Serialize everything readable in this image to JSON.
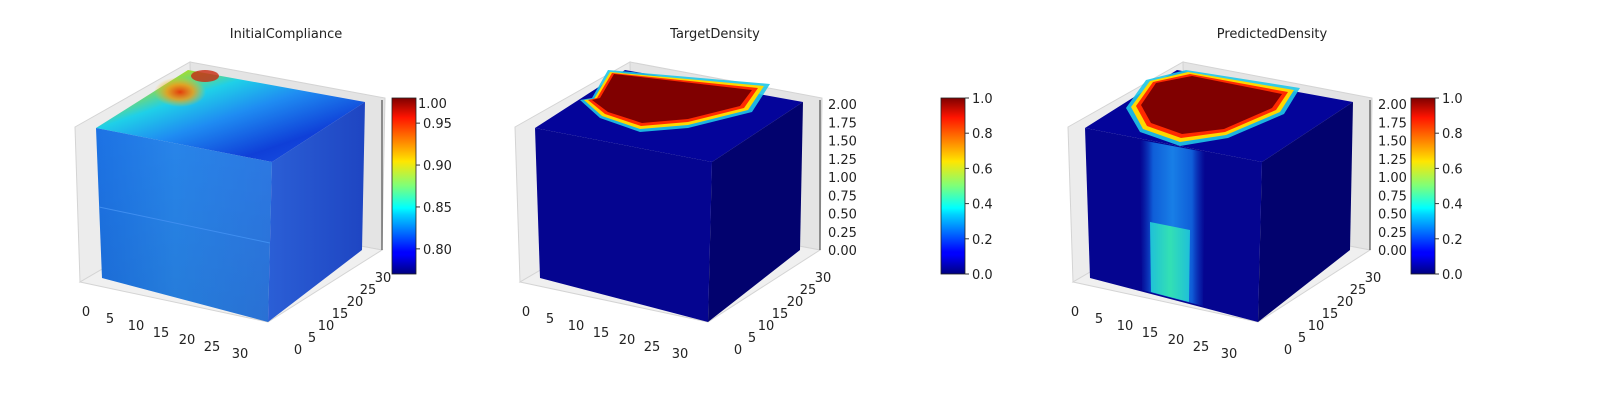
{
  "chart_data": [
    {
      "type": "3d-voxel",
      "title": "InitialCompliance",
      "x_ticks": [
        "0",
        "5",
        "10",
        "15",
        "20",
        "25",
        "30"
      ],
      "y_ticks": [
        "0",
        "5",
        "10",
        "15",
        "20",
        "25",
        "30"
      ],
      "z_ticks": [],
      "xlim": [
        0,
        32
      ],
      "ylim": [
        0,
        32
      ],
      "colormap": "jet",
      "colorbar": {
        "range": [
          0.77,
          0.98
        ],
        "ticks": [
          "0.80",
          "0.85",
          "0.90",
          "0.95"
        ],
        "top_partial_label": "1.00"
      }
    },
    {
      "type": "3d-voxel",
      "title": "TargetDensity",
      "x_ticks": [
        "0",
        "5",
        "10",
        "15",
        "20",
        "25",
        "30"
      ],
      "y_ticks": [
        "0",
        "5",
        "10",
        "15",
        "20",
        "25",
        "30"
      ],
      "z_ticks": [
        "0.00",
        "0.25",
        "0.50",
        "0.75",
        "1.00",
        "1.25",
        "1.50",
        "1.75",
        "2.00"
      ],
      "xlim": [
        0,
        32
      ],
      "ylim": [
        0,
        32
      ],
      "zlim": [
        0,
        2
      ],
      "colormap": "jet",
      "colorbar": {
        "range": [
          0,
          1
        ],
        "ticks": [
          "0.0",
          "0.2",
          "0.4",
          "0.6",
          "0.8",
          "1.0"
        ]
      }
    },
    {
      "type": "3d-voxel",
      "title": "PredictedDensity",
      "x_ticks": [
        "0",
        "5",
        "10",
        "15",
        "20",
        "25",
        "30"
      ],
      "y_ticks": [
        "0",
        "5",
        "10",
        "15",
        "20",
        "25",
        "30"
      ],
      "z_ticks": [
        "0.00",
        "0.25",
        "0.50",
        "0.75",
        "1.00",
        "1.25",
        "1.50",
        "1.75",
        "2.00"
      ],
      "xlim": [
        0,
        32
      ],
      "ylim": [
        0,
        32
      ],
      "zlim": [
        0,
        2
      ],
      "colormap": "jet",
      "colorbar": {
        "range": [
          0,
          1
        ],
        "ticks": [
          "0.0",
          "0.2",
          "0.4",
          "0.6",
          "0.8",
          "1.0"
        ]
      }
    }
  ],
  "colors": {
    "jet_low": "#00007f",
    "jet_high": "#7f0000",
    "pane": "#ebebeb"
  }
}
